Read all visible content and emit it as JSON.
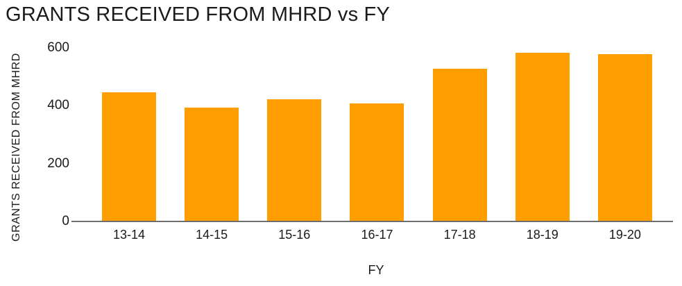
{
  "chart_data": {
    "type": "bar",
    "title": "GRANTS RECEIVED FROM MHRD vs FY",
    "xlabel": "FY",
    "ylabel": "GRANTS RECEIVED FROM MHRD",
    "categories": [
      "13-14",
      "14-15",
      "15-16",
      "16-17",
      "17-18",
      "18-19",
      "19-20"
    ],
    "values": [
      445,
      390,
      420,
      405,
      525,
      580,
      575
    ],
    "ylim": [
      0,
      600
    ],
    "yticks": [
      0,
      200,
      400,
      600
    ],
    "grid": false,
    "legend": false,
    "bar_color": "#FF9E00",
    "axis_color": "#6E6E6E",
    "text_color": "#1A1A1A",
    "background_color": "#FFFFFF"
  }
}
